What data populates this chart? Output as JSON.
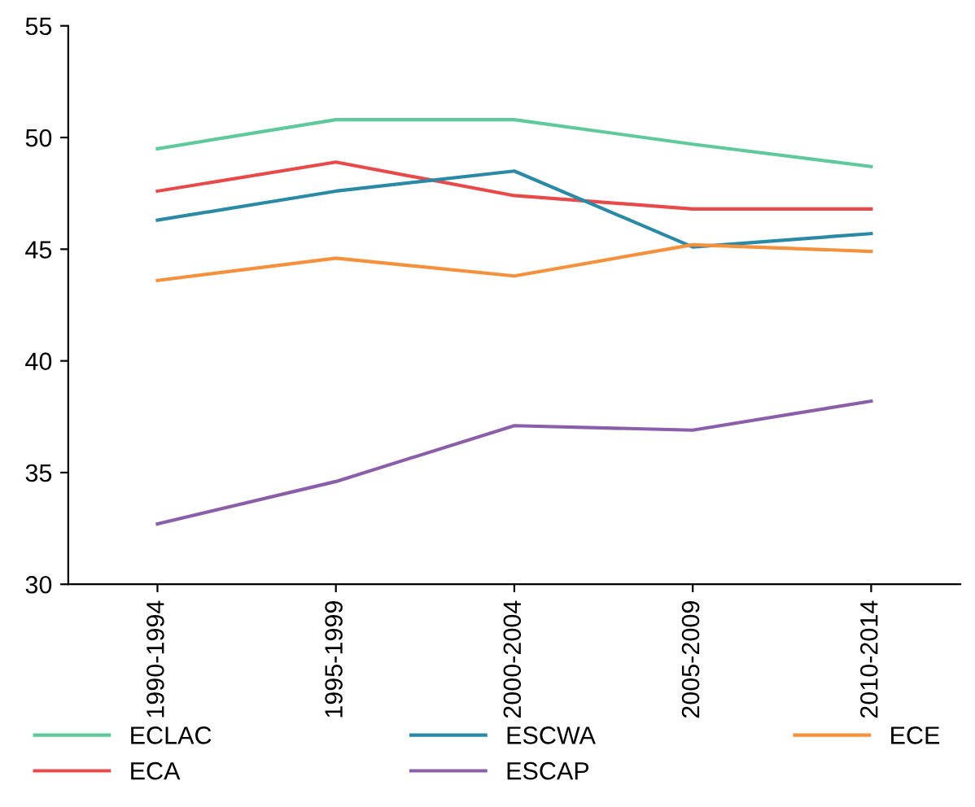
{
  "chart_data": {
    "type": "line",
    "categories": [
      "1990-1994",
      "1995-1999",
      "2000-2004",
      "2005-2009",
      "2010-2014"
    ],
    "series": [
      {
        "name": "ECLAC",
        "color": "#5ec99a",
        "values": [
          49.5,
          50.8,
          50.8,
          49.7,
          48.7
        ]
      },
      {
        "name": "ECA",
        "color": "#e84a4a",
        "values": [
          47.6,
          48.9,
          47.4,
          46.8,
          46.8
        ]
      },
      {
        "name": "ESCWA",
        "color": "#2a8aa6",
        "values": [
          46.3,
          47.6,
          48.5,
          45.1,
          45.7
        ]
      },
      {
        "name": "ESCAP",
        "color": "#8a5ea8",
        "values": [
          32.7,
          34.6,
          37.1,
          36.9,
          38.2
        ]
      },
      {
        "name": "ECE",
        "color": "#f5913d",
        "values": [
          43.6,
          44.6,
          43.8,
          45.2,
          44.9
        ]
      }
    ],
    "ylim": [
      30,
      55
    ],
    "yticks": [
      30,
      35,
      40,
      45,
      50,
      55
    ],
    "grid": false,
    "legend": "bottom",
    "marker": "none",
    "line_style": "solid"
  }
}
